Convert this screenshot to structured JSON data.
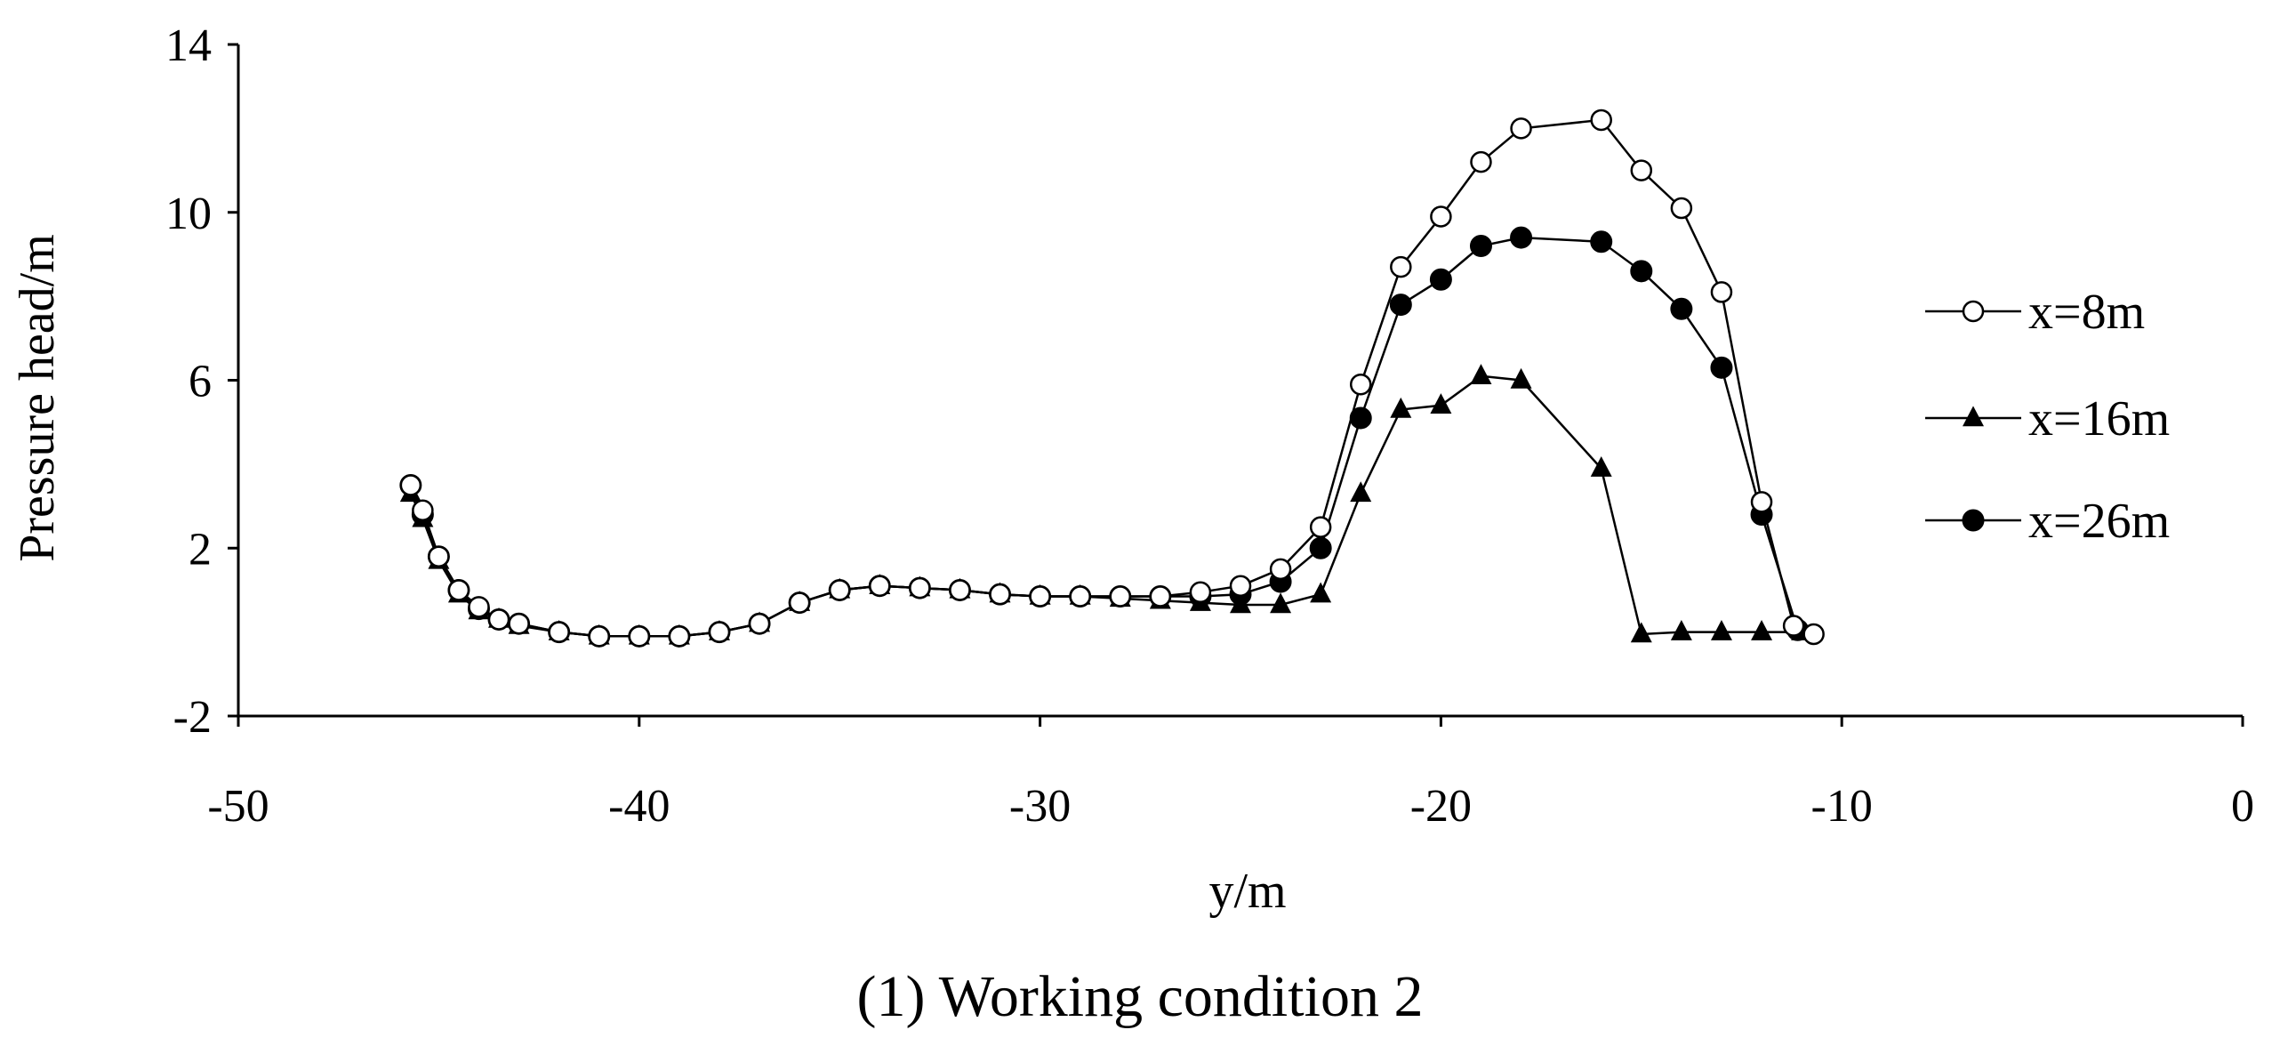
{
  "chart_data": {
    "type": "line",
    "title": "",
    "caption": "(1) Working condition 2",
    "xlabel": "y/m",
    "ylabel": "Pressure head/m",
    "xlim": [
      -50,
      0
    ],
    "ylim": [
      -2,
      14
    ],
    "xticks": [
      -50,
      -40,
      -30,
      -20,
      -10,
      0
    ],
    "yticks": [
      -2,
      2,
      6,
      10,
      14
    ],
    "xtick_labels": [
      "-50",
      "-40",
      "-30",
      "-20",
      "-10",
      "0"
    ],
    "ytick_labels": [
      "-2",
      "2",
      "6",
      "10",
      "14"
    ],
    "grid": false,
    "legend_position": "right",
    "series": [
      {
        "name": "x=8m",
        "marker": "open-circle",
        "x": [
          -45.7,
          -45.4,
          -45,
          -44.5,
          -44,
          -43.5,
          -43,
          -42,
          -41,
          -40,
          -39,
          -38,
          -37,
          -36,
          -35,
          -34,
          -33,
          -32,
          -31,
          -30,
          -29,
          -28,
          -27,
          -26,
          -25,
          -24,
          -23,
          -22,
          -21,
          -20,
          -19,
          -18,
          -16,
          -15,
          -14,
          -13,
          -12,
          -11.2,
          -10.7
        ],
        "y": [
          3.5,
          2.9,
          1.8,
          1.0,
          0.6,
          0.3,
          0.2,
          0.0,
          -0.1,
          -0.1,
          -0.1,
          0.0,
          0.2,
          0.7,
          1.0,
          1.1,
          1.05,
          1.0,
          0.9,
          0.85,
          0.85,
          0.85,
          0.85,
          0.95,
          1.1,
          1.5,
          2.5,
          5.9,
          8.7,
          9.9,
          11.2,
          12.0,
          12.2,
          11.0,
          10.1,
          8.1,
          3.1,
          0.15,
          -0.05
        ]
      },
      {
        "name": "x=16m",
        "marker": "filled-triangle",
        "x": [
          -45.7,
          -45.4,
          -45,
          -44.5,
          -44,
          -43.5,
          -43,
          -42,
          -41,
          -40,
          -39,
          -38,
          -37,
          -36,
          -35,
          -34,
          -33,
          -32,
          -31,
          -30,
          -29,
          -28,
          -27,
          -26,
          -25,
          -24,
          -23,
          -22,
          -21,
          -20,
          -19,
          -18,
          -16,
          -15,
          -14,
          -13,
          -12,
          -11
        ],
        "y": [
          3.3,
          2.7,
          1.7,
          0.9,
          0.5,
          0.3,
          0.15,
          0.0,
          -0.1,
          -0.1,
          -0.1,
          0.0,
          0.2,
          0.7,
          1.0,
          1.1,
          1.05,
          1.0,
          0.9,
          0.85,
          0.85,
          0.8,
          0.75,
          0.7,
          0.65,
          0.65,
          0.9,
          3.3,
          5.3,
          5.4,
          6.1,
          6.0,
          3.9,
          -0.05,
          0.0,
          0.0,
          0.0,
          0.0
        ]
      },
      {
        "name": "x=26m",
        "marker": "filled-circle",
        "x": [
          -45.7,
          -45.4,
          -45,
          -44.5,
          -44,
          -43.5,
          -43,
          -42,
          -41,
          -40,
          -39,
          -38,
          -37,
          -36,
          -35,
          -34,
          -33,
          -32,
          -31,
          -30,
          -29,
          -28,
          -27,
          -26,
          -25,
          -24,
          -23,
          -22,
          -21,
          -20,
          -19,
          -18,
          -16,
          -15,
          -14,
          -13,
          -12,
          -11.1
        ],
        "y": [
          3.5,
          2.8,
          1.8,
          1.0,
          0.55,
          0.3,
          0.2,
          0.0,
          -0.1,
          -0.1,
          -0.1,
          0.0,
          0.2,
          0.7,
          1.0,
          1.1,
          1.05,
          1.0,
          0.9,
          0.85,
          0.85,
          0.85,
          0.85,
          0.85,
          0.9,
          1.2,
          2.0,
          5.1,
          7.8,
          8.4,
          9.2,
          9.4,
          9.3,
          8.6,
          7.7,
          6.3,
          2.8,
          0.05
        ]
      }
    ]
  }
}
